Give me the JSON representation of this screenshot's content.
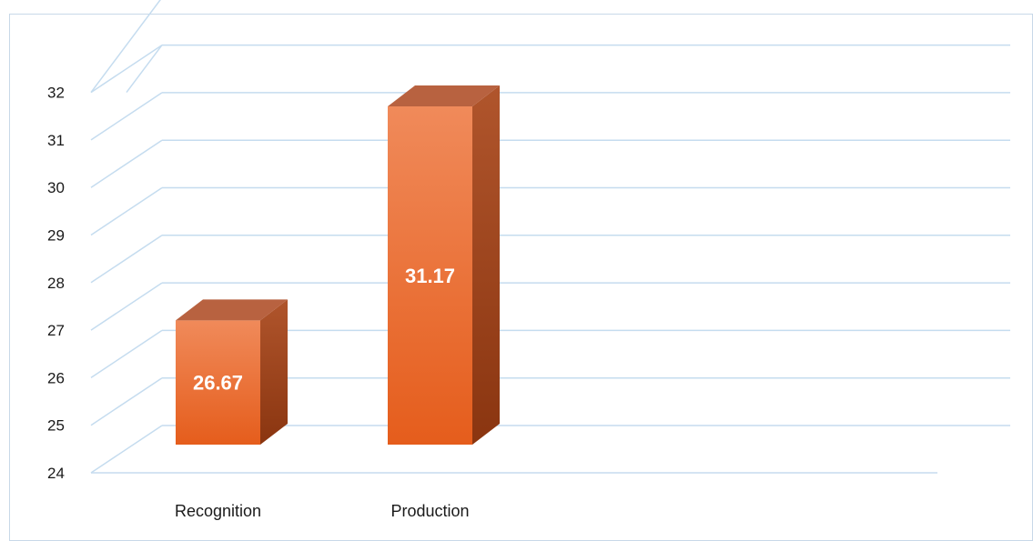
{
  "chart_data": {
    "type": "bar",
    "categories": [
      "Recognition",
      "Production"
    ],
    "values": [
      26.67,
      31.17
    ],
    "value_labels": [
      "26.67",
      "31.17"
    ],
    "ylim": [
      24,
      32
    ],
    "yticks": [
      "24",
      "25",
      "26",
      "27",
      "28",
      "29",
      "30",
      "31",
      "32"
    ],
    "title": "",
    "xlabel": "",
    "ylabel": "",
    "grid": true,
    "style": "3d-column",
    "colors": {
      "front_top": "#f08a5a",
      "front_bottom": "#e55d1c",
      "side_top": "#b0552c",
      "side_bottom": "#8a3510",
      "top": "#b86240",
      "grid": "#c5dcef",
      "frame": "#c8d8e8"
    }
  }
}
